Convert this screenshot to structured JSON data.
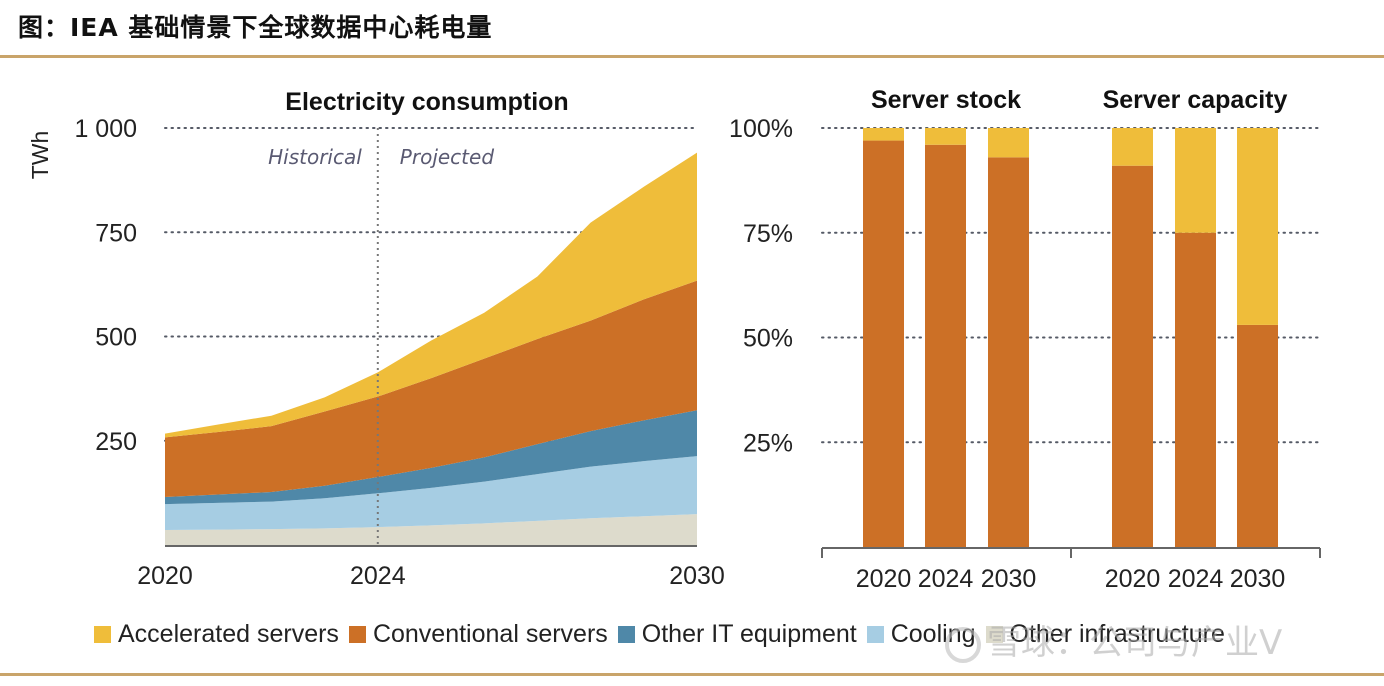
{
  "figure_title": "图：IEA 基础情景下全球数据中心耗电量",
  "watermark": "雪球：公司与产业V",
  "colors": {
    "accelerated": "#efbd3a",
    "conventional": "#cc7026",
    "other_it": "#4f88a8",
    "cooling": "#a6cde3",
    "other_infra": "#dddbcc",
    "grid": "#555a66",
    "axis": "#555555",
    "annotation": "#5a5a72"
  },
  "legend": [
    {
      "label": "Accelerated servers",
      "color_key": "accelerated"
    },
    {
      "label": "Conventional servers",
      "color_key": "conventional"
    },
    {
      "label": "Other IT equipment",
      "color_key": "other_it"
    },
    {
      "label": "Cooling",
      "color_key": "cooling"
    },
    {
      "label": "Other infrastructure",
      "color_key": "other_infra"
    }
  ],
  "chart_data": [
    {
      "type": "area",
      "stacked": true,
      "title": "Electricity consumption",
      "ylabel": "TWh",
      "xlabel": "",
      "x": [
        2020,
        2021,
        2022,
        2023,
        2024,
        2025,
        2026,
        2027,
        2028,
        2029,
        2030
      ],
      "x_tick_labels": [
        "2020",
        "2024",
        "2030"
      ],
      "x_ticks": [
        2020,
        2024,
        2030
      ],
      "y_tick_labels": [
        "1 000",
        "750",
        "500",
        "250"
      ],
      "y_ticks": [
        1000,
        750,
        500,
        250
      ],
      "ylim": [
        0,
        1000
      ],
      "xlim": [
        2020,
        2030
      ],
      "grid": "horizontal-dotted",
      "divider": {
        "x": 2024,
        "left_label": "Historical",
        "right_label": "Projected"
      },
      "series": [
        {
          "name": "Other infrastructure",
          "color_key": "other_infra",
          "values": [
            36,
            37,
            38,
            40,
            43,
            47,
            52,
            58,
            64,
            69,
            74
          ]
        },
        {
          "name": "Cooling",
          "color_key": "cooling",
          "values": [
            62,
            64,
            66,
            72,
            81,
            90,
            100,
            112,
            124,
            132,
            139
          ]
        },
        {
          "name": "Other IT equipment",
          "color_key": "other_it",
          "values": [
            17,
            20,
            23,
            30,
            39,
            48,
            58,
            72,
            85,
            98,
            110
          ]
        },
        {
          "name": "Conventional servers",
          "color_key": "conventional",
          "values": [
            143,
            150,
            158,
            178,
            193,
            215,
            237,
            252,
            265,
            290,
            311
          ]
        },
        {
          "name": "Accelerated servers",
          "color_key": "accelerated",
          "values": [
            9,
            18,
            25,
            34,
            58,
            90,
            110,
            150,
            235,
            270,
            307
          ]
        }
      ]
    },
    {
      "type": "bar",
      "stacked": true,
      "percent": true,
      "groups": [
        {
          "title": "Server stock",
          "categories": [
            "2020",
            "2024",
            "2030"
          ],
          "series": [
            {
              "name": "Conventional servers",
              "color_key": "conventional",
              "values": [
                97,
                96,
                93
              ]
            },
            {
              "name": "Accelerated servers",
              "color_key": "accelerated",
              "values": [
                3,
                4,
                7
              ]
            }
          ]
        },
        {
          "title": "Server capacity",
          "categories": [
            "2020",
            "2024",
            "2030"
          ],
          "series": [
            {
              "name": "Conventional servers",
              "color_key": "conventional",
              "values": [
                91,
                75,
                53
              ]
            },
            {
              "name": "Accelerated servers",
              "color_key": "accelerated",
              "values": [
                9,
                25,
                47
              ]
            }
          ]
        }
      ],
      "y_tick_labels": [
        "100%",
        "75%",
        "50%",
        "25%"
      ],
      "y_ticks": [
        100,
        75,
        50,
        25
      ],
      "ylim": [
        0,
        100
      ],
      "grid": "horizontal-dotted"
    }
  ]
}
